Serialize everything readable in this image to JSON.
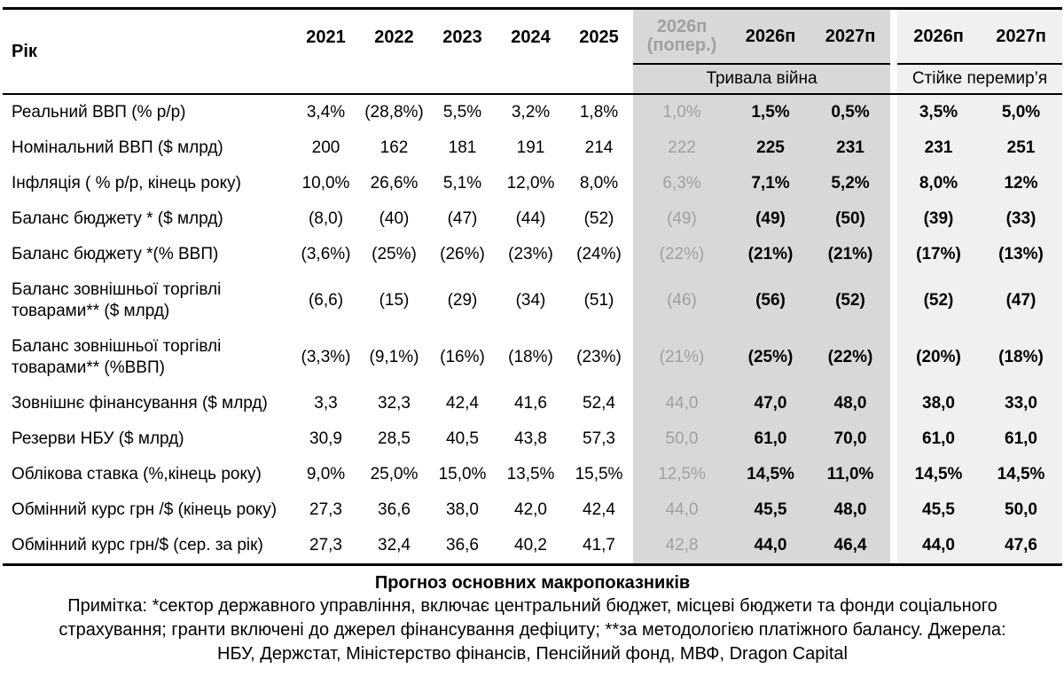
{
  "table": {
    "corner_label": "Рік",
    "year_columns": [
      "2021",
      "2022",
      "2023",
      "2024",
      "2025"
    ],
    "prev_header_line1": "2026п",
    "prev_header_line2": "(попер.)",
    "war_year_columns": [
      "2026п",
      "2027п"
    ],
    "peace_year_columns": [
      "2026п",
      "2027п"
    ],
    "scenario_war_label": "Тривала війна",
    "scenario_peace_label": "Стійке перемир’я",
    "rows": [
      {
        "label": "Реальний ВВП (% р/р)",
        "values": [
          "3,4%",
          "(28,8%)",
          "5,5%",
          "3,2%",
          "1,8%",
          "1,0%",
          "1,5%",
          "0,5%",
          "3,5%",
          "5,0%"
        ]
      },
      {
        "label": "Номінальний ВВП ($ млрд)",
        "values": [
          "200",
          "162",
          "181",
          "191",
          "214",
          "222",
          "225",
          "231",
          "231",
          "251"
        ]
      },
      {
        "label": "Інфляція ( % р/р, кінець року)",
        "values": [
          "10,0%",
          "26,6%",
          "5,1%",
          "12,0%",
          "8,0%",
          "6,3%",
          "7,1%",
          "5,2%",
          "8,0%",
          "12%"
        ]
      },
      {
        "label": "Баланс бюджету * ($ млрд)",
        "values": [
          "(8,0)",
          "(40)",
          "(47)",
          "(44)",
          "(52)",
          "(49)",
          "(49)",
          "(50)",
          "(39)",
          "(33)"
        ]
      },
      {
        "label": "Баланс бюджету *(% ВВП)",
        "values": [
          "(3,6%)",
          "(25%)",
          "(26%)",
          "(23%)",
          "(24%)",
          "(22%)",
          "(21%)",
          "(21%)",
          "(17%)",
          "(13%)"
        ]
      },
      {
        "label": "Баланс зовнішньої торгівлі товарами** ($ млрд)",
        "values": [
          "(6,6)",
          "(15)",
          "(29)",
          "(34)",
          "(51)",
          "(46)",
          "(56)",
          "(52)",
          "(52)",
          "(47)"
        ]
      },
      {
        "label": "Баланс зовнішньої торгівлі товарами** (%ВВП)",
        "values": [
          "(3,3%)",
          "(9,1%)",
          "(16%)",
          "(18%)",
          "(23%)",
          "(21%)",
          "(25%)",
          "(22%)",
          "(20%)",
          "(18%)"
        ]
      },
      {
        "label": "Зовнішнє фінансування ($ млрд)",
        "values": [
          "3,3",
          "32,3",
          "42,4",
          "41,6",
          "52,4",
          "44,0",
          "47,0",
          "48,0",
          "38,0",
          "33,0"
        ]
      },
      {
        "label": "Резерви НБУ ($ млрд)",
        "values": [
          "30,9",
          "28,5",
          "40,5",
          "43,8",
          "57,3",
          "50,0",
          "61,0",
          "70,0",
          "61,0",
          "61,0"
        ]
      },
      {
        "label": "Облікова ставка (%,кінець року)",
        "values": [
          "9,0%",
          "25,0%",
          "15,0%",
          "13,5%",
          "15,5%",
          "12,5%",
          "14,5%",
          "11,0%",
          "14,5%",
          "14,5%"
        ]
      },
      {
        "label": "Обмінний курс грн /$ (кінець року)",
        "values": [
          "27,3",
          "36,6",
          "38,0",
          "42,0",
          "42,4",
          "44,0",
          "45,5",
          "48,0",
          "45,5",
          "50,0"
        ]
      },
      {
        "label": "Обмінний курс грн/$ (сер. за рік)",
        "values": [
          "27,3",
          "32,4",
          "36,6",
          "40,2",
          "41,7",
          "42,8",
          "44,0",
          "46,4",
          "44,0",
          "47,6"
        ]
      }
    ]
  },
  "caption": "Прогноз основних макропоказників",
  "note_lines": [
    "Примітка: *сектор державного управління, включає центральний бюджет, місцеві бюджети та фонди соціального",
    "страхування; гранти включені до джерел фінансування дефіциту; **за методологією платіжного балансу. Джерела:",
    "НБУ, Держстат, Міністерство фінансів, Пенсійний фонд, МВФ, Dragon Capital"
  ],
  "colors": {
    "war_bg": "#d8d8d8",
    "peace_bg": "#f0f0f1",
    "prev_text": "#a0a0a0",
    "border": "#000000"
  }
}
